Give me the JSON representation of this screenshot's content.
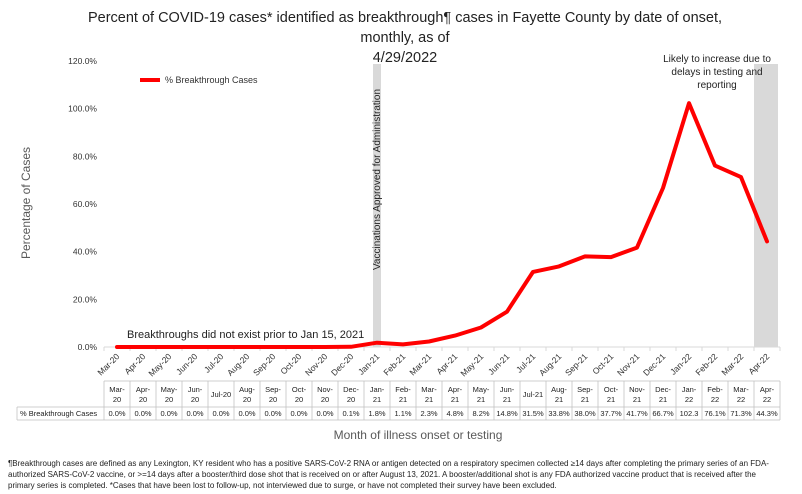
{
  "title_line1": "Percent of COVID-19 cases* identified as breakthrough¶ cases in Fayette County by date of onset, monthly, as of",
  "title_line2": "4/29/2022",
  "footnote_line1": "¶Breakthrough cases are defined as any Lexington, KY resident who has a positive SARS-CoV-2 RNA or antigen detected on a respiratory specimen collected ≥14 days after completing the primary series of an FDA-",
  "footnote_line2": "authorized SARS-CoV-2 vaccine, or >=14 days after a booster/third dose shot that is received on or after August 13, 2021.  A booster/additional shot is any FDA authorized vaccine product that is received after the",
  "footnote_line3": "primary series is completed. *Cases that have been lost to follow-up, not interviewed due to surge, or have not completed their survey have been excluded.",
  "colors": {
    "line": "#ff0000",
    "band": "#d9d9d9",
    "axis": "#d9d9d9",
    "text": "#595959"
  },
  "chart_data": {
    "type": "line",
    "title": "Percent of COVID-19 cases* identified as breakthrough¶ cases in Fayette County by date of onset, monthly, as of 4/29/2022",
    "xlabel": "Month of illness onset or testing",
    "ylabel": "Percentage of Cases",
    "ylim": [
      0,
      120
    ],
    "yticks": [
      "0.0%",
      "20.0%",
      "40.0%",
      "60.0%",
      "80.0%",
      "100.0%",
      "120.0%"
    ],
    "categories": [
      "Mar-20",
      "Apr-20",
      "May-20",
      "Jun-20",
      "Jul-20",
      "Aug-20",
      "Sep-20",
      "Oct-20",
      "Nov-20",
      "Dec-20",
      "Jan-21",
      "Feb-21",
      "Mar-21",
      "Apr-21",
      "May-21",
      "Jun-21",
      "Jul-21",
      "Aug-21",
      "Sep-21",
      "Oct-21",
      "Nov-21",
      "Dec-21",
      "Jan-22",
      "Feb-22",
      "Mar-22",
      "Apr-22"
    ],
    "table_categories": [
      "Mar-\n20",
      "Apr-\n20",
      "May-\n20",
      "Jun-\n20",
      "Jul-20",
      "Aug-\n20",
      "Sep-\n20",
      "Oct-\n20",
      "Nov-\n20",
      "Dec-\n20",
      "Jan-\n21",
      "Feb-\n21",
      "Mar-\n21",
      "Apr-\n21",
      "May-\n21",
      "Jun-\n21",
      "Jul-21",
      "Aug-\n21",
      "Sep-\n21",
      "Oct-\n21",
      "Nov-\n21",
      "Dec-\n21",
      "Jan-\n22",
      "Feb-\n22",
      "Mar-\n22",
      "Apr-\n22"
    ],
    "series": [
      {
        "name": "% Breakthrough Cases",
        "values": [
          0.0,
          0.0,
          0.0,
          0.0,
          0.0,
          0.0,
          0.0,
          0.0,
          0.0,
          0.1,
          1.8,
          1.1,
          2.3,
          4.8,
          8.2,
          14.8,
          31.5,
          33.8,
          38.0,
          37.7,
          41.7,
          66.7,
          102.3,
          76.1,
          71.3,
          44.3
        ],
        "labels": [
          "0.0%",
          "0.0%",
          "0.0%",
          "0.0%",
          "0.0%",
          "0.0%",
          "0.0%",
          "0.0%",
          "0.0%",
          "0.1%",
          "1.8%",
          "1.1%",
          "2.3%",
          "4.8%",
          "8.2%",
          "14.8%",
          "31.5%",
          "33.8%",
          "38.0%",
          "37.7%",
          "41.7%",
          "66.7%",
          "102.3",
          "76.1%",
          "71.3%",
          "44.3%"
        ]
      }
    ],
    "legend": "top-left",
    "grid": false,
    "annotations": {
      "vaccination_text": "Vaccinations Approved for Administration",
      "vaccination_month": "Jan-21",
      "increase_text_lines": [
        "Likely to increase due to",
        "delays in testing and",
        "reporting"
      ],
      "increase_month": "Apr-22",
      "note_text": "Breakthroughs did not exist prior to Jan 15, 2021"
    }
  }
}
